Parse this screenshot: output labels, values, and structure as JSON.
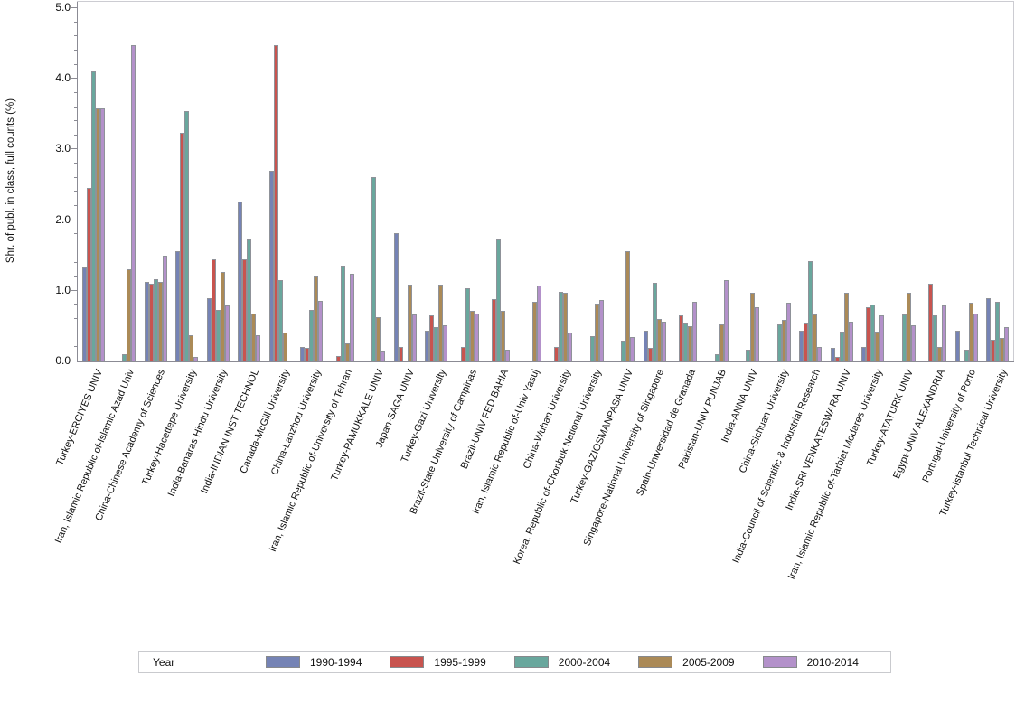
{
  "chart_data": {
    "type": "bar",
    "title": "",
    "xlabel": "",
    "ylabel": "Shr. of publ. in class, full counts (%)",
    "ylim": [
      0.0,
      5.0
    ],
    "yticks": [
      0.0,
      1.0,
      2.0,
      3.0,
      4.0,
      5.0
    ],
    "ytick_labels": [
      "0.0",
      "1.0",
      "2.0",
      "3.0",
      "4.0",
      "5.0"
    ],
    "minor_tick_step": 0.2,
    "grid": false,
    "legend_title": "Year",
    "legend_position": "bottom",
    "categories": [
      "Turkey-ERCIYES UNIV",
      "Iran, Islamic Republic of-Islamic Azad Univ",
      "China-Chinese Academy of Sciences",
      "Turkey-Hacettepe University",
      "India-Banaras Hindu University",
      "India-INDIAN INST TECHNOL",
      "Canada-McGill University",
      "China-Lanzhou University",
      "Iran, Islamic Republic of-University of Tehran",
      "Turkey-PAMUKKALE UNIV",
      "Japan-SAGA UNIV",
      "Turkey-Gazi University",
      "Brazil-State University of Campinas",
      "Brazil-UNIV FED BAHIA",
      "Iran, Islamic Republic of-Univ Yasuj",
      "China-Wuhan University",
      "Korea, Republic of-Chonbuk National University",
      "Turkey-GAZIOSMANPASA UNIV",
      "Singapore-National University of Singapore",
      "Spain-Universidad de Granada",
      "Pakistan-UNIV PUNJAB",
      "India-ANNA UNIV",
      "China-Sichuan University",
      "India-Council of Scientific & Industrial Research",
      "India-SRI VENKATESWARA UNIV",
      "Iran, Islamic Republic of-Tarbiat Modares University",
      "Turkey-ATATURK UNIV",
      "Egypt-UNIV ALEXANDRIA",
      "Portugal-University of Porto",
      "Turkey-Istanbul Technical University"
    ],
    "series": [
      {
        "name": "1990-1994",
        "color": "#7583b5",
        "values": [
          1.33,
          0,
          1.12,
          1.56,
          0.9,
          2.26,
          2.7,
          0.2,
          0,
          0,
          1.81,
          0.43,
          0,
          0,
          0,
          0,
          0,
          0,
          0.43,
          0,
          0,
          0,
          0,
          0.43,
          0.19,
          0.2,
          0,
          0,
          0.44,
          0.89
        ]
      },
      {
        "name": "1995-1999",
        "color": "#c8544f",
        "values": [
          2.45,
          0,
          1.1,
          3.24,
          1.44,
          1.44,
          4.47,
          0.19,
          0.08,
          0,
          0.2,
          0.65,
          0.2,
          0.88,
          0,
          0.21,
          0,
          0,
          0.19,
          0.65,
          0,
          0,
          0,
          0.54,
          0.07,
          0.77,
          0,
          1.1,
          0,
          0.31
        ]
      },
      {
        "name": "2000-2004",
        "color": "#69a79d",
        "values": [
          4.1,
          0.1,
          1.17,
          3.54,
          0.73,
          1.72,
          1.15,
          0.73,
          1.35,
          2.61,
          0,
          0.48,
          1.04,
          1.72,
          0,
          0.98,
          0.36,
          0.29,
          1.11,
          0.54,
          0.1,
          0.16,
          0.53,
          1.42,
          0.42,
          0.8,
          0.66,
          0.65,
          0.17,
          0.85
        ]
      },
      {
        "name": "2005-2009",
        "color": "#ab8a57",
        "values": [
          3.58,
          1.3,
          1.13,
          0.37,
          1.26,
          0.68,
          0.41,
          1.21,
          0.26,
          0.63,
          1.09,
          1.09,
          0.72,
          0.72,
          0.85,
          0.97,
          0.82,
          1.56,
          0.6,
          0.5,
          0.53,
          0.97,
          0.59,
          0.66,
          0.97,
          0.42,
          0.97,
          0.2,
          0.83,
          0.33
        ]
      },
      {
        "name": "2010-2014",
        "color": "#b391ca",
        "values": [
          3.58,
          4.47,
          1.5,
          0.06,
          0.79,
          0.37,
          0,
          0.86,
          1.24,
          0.15,
          0.67,
          0.51,
          0.68,
          0.17,
          1.07,
          0.41,
          0.87,
          0.34,
          0.56,
          0.84,
          1.15,
          0.77,
          0.83,
          0.2,
          0.56,
          0.65,
          0.51,
          0.79,
          0.68,
          0.48
        ]
      }
    ]
  },
  "colors": {
    "axis_line": "#8b8b94",
    "frame": "#ccccd2",
    "bar_outline": "#8f9299",
    "legend_border": "#c9cace",
    "text": "#111111"
  }
}
